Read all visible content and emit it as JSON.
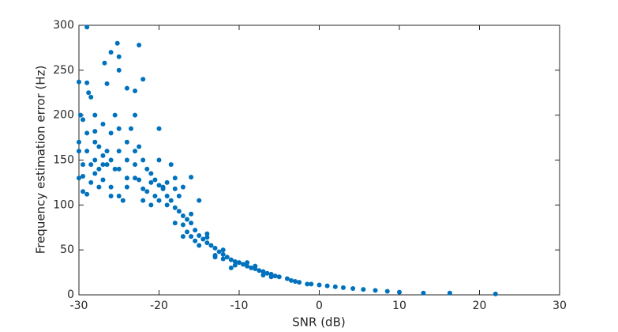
{
  "chart_data": {
    "type": "scatter",
    "xlabel": "SNR (dB)",
    "ylabel": "Frequency estimation error (Hz)",
    "xlim": [
      -30,
      30
    ],
    "ylim": [
      0,
      300
    ],
    "xticks": [
      -30,
      -20,
      -10,
      0,
      10,
      20,
      30
    ],
    "yticks": [
      0,
      50,
      100,
      150,
      200,
      250,
      300
    ],
    "grid": false,
    "series": [
      {
        "color": "#0072BD",
        "x": [
          22,
          16.3,
          13,
          10,
          8.5,
          7,
          5.5,
          4.2,
          3,
          2,
          1,
          0,
          -1,
          -1.5,
          -2.5,
          -3,
          -3.5,
          -4,
          -5,
          -5.5,
          -6,
          -6.5,
          -7,
          -7.5,
          -8,
          -8.5,
          -9,
          -9.5,
          -10,
          -10.5,
          -11,
          -11.5,
          -12,
          -12.5,
          -13,
          -13.5,
          -14,
          -14.5,
          -15,
          -15.5,
          -16,
          -16.5,
          -17,
          -17.5,
          -18,
          -18.5,
          -19,
          -19.5,
          -20,
          -20.5,
          -21,
          -15,
          -16,
          -17,
          -16,
          -13,
          -12,
          -11,
          -9,
          -14,
          -15,
          -17.5,
          -18,
          -17,
          -16,
          -18.5,
          -19,
          -20,
          -20,
          -21,
          -22,
          -22,
          -21.5,
          -22.5,
          -22,
          -22.5,
          -23,
          -23,
          -23.5,
          -23,
          -24,
          -24,
          -24.5,
          -24,
          -25,
          -25,
          -25.2,
          -25.5,
          -25,
          -25,
          -25.5,
          -26,
          -26,
          -26.5,
          -26.8,
          -26,
          -26.5,
          -27,
          -27,
          -27.5,
          -27,
          -28,
          -28,
          -28,
          -28.5,
          -28.5,
          -28.8,
          -29,
          -29,
          -29.5,
          -29,
          -29,
          -29.5,
          -29.5,
          -30,
          -29.8,
          -30,
          -30,
          -29,
          -28,
          -27.5,
          -26.5,
          -26,
          -25,
          -24,
          -23,
          -22,
          -21,
          -20.5,
          -19.5,
          -20,
          -18,
          -17,
          -16.5,
          -15.5,
          -14,
          -13,
          -12,
          -10.5,
          -8,
          -6,
          -7,
          -27,
          -28.5,
          -26,
          -25,
          -24,
          -23,
          -22.5,
          -21.5,
          -19,
          -18,
          -30,
          -29.5,
          -28,
          -27.5
        ],
        "values": [
          1,
          2,
          2,
          3,
          4,
          5,
          6,
          7,
          8,
          9,
          10,
          11,
          12,
          12,
          14,
          15,
          16,
          18,
          20,
          21,
          23,
          24,
          26,
          27,
          29,
          30,
          32,
          34,
          36,
          37,
          39,
          42,
          45,
          48,
          52,
          55,
          58,
          62,
          66,
          72,
          80,
          84,
          88,
          93,
          97,
          105,
          110,
          118,
          122,
          128,
          135,
          105,
          90,
          65,
          65,
          42,
          50,
          30,
          36,
          68,
          55,
          110,
          130,
          120,
          131,
          145,
          100,
          185,
          150,
          100,
          105,
          118,
          140,
          165,
          240,
          278,
          227,
          200,
          185,
          160,
          150,
          130,
          105,
          230,
          250,
          265,
          280,
          200,
          185,
          160,
          140,
          120,
          270,
          235,
          258,
          180,
          160,
          145,
          128,
          120,
          190,
          170,
          150,
          135,
          125,
          220,
          225,
          298,
          236,
          195,
          180,
          160,
          145,
          115,
          237,
          200,
          160,
          130,
          112,
          182,
          165,
          145,
          110,
          110,
          170,
          130,
          150,
          125,
          110,
          120,
          105,
          80,
          78,
          70,
          60,
          64,
          44,
          40,
          33,
          32,
          20,
          22,
          155,
          145,
          150,
          140,
          120,
          145,
          128,
          115,
          125,
          118,
          170,
          132,
          200,
          140
        ]
      }
    ]
  }
}
